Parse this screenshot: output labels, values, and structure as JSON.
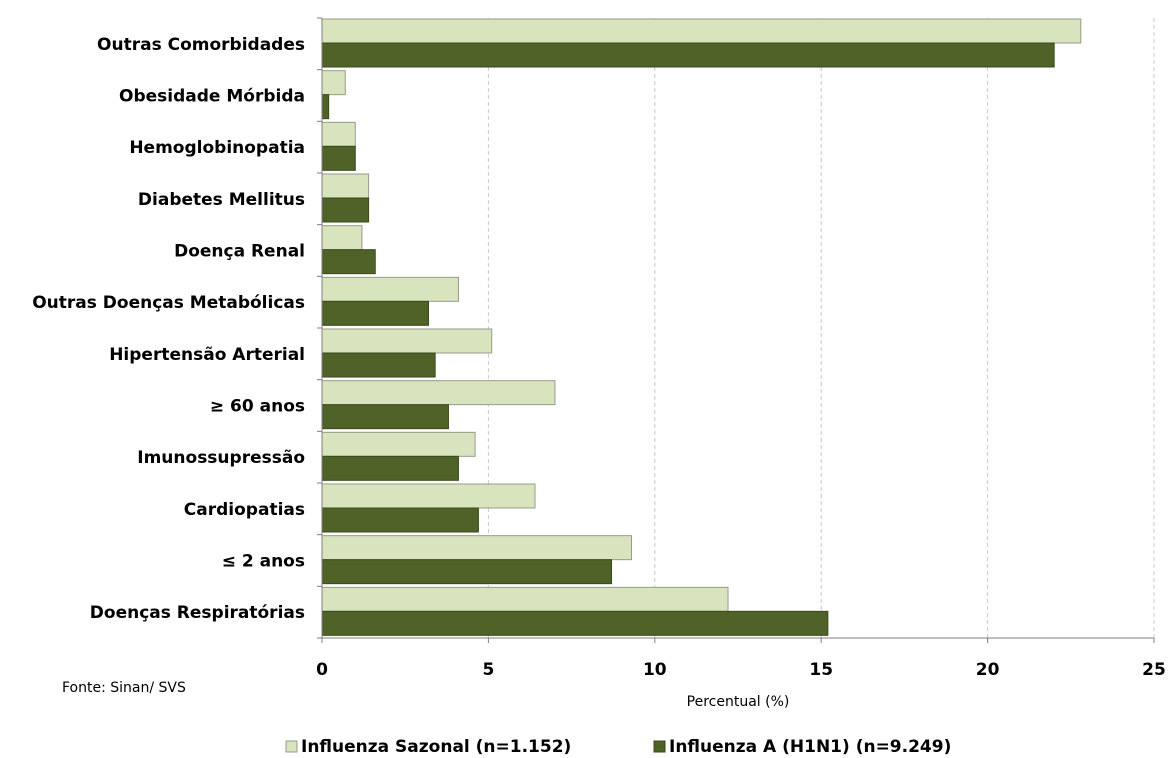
{
  "chart_data": {
    "type": "bar",
    "orientation": "horizontal",
    "categories": [
      "Outras Comorbidades",
      "Obesidade Mórbida",
      "Hemoglobinopatia",
      "Diabetes Mellitus",
      "Doença Renal",
      "Outras Doenças Metabólicas",
      "Hipertensão Arterial",
      "≥ 60 anos",
      "Imunossupressão",
      "Cardiopatias",
      "≤ 2 anos",
      "Doenças Respiratórias"
    ],
    "series": [
      {
        "name": "Influenza Sazonal (n=1.152)",
        "color": "#d7e4bd",
        "values": [
          22.8,
          0.7,
          1.0,
          1.4,
          1.2,
          4.1,
          5.1,
          7.0,
          4.6,
          6.4,
          9.3,
          12.2
        ]
      },
      {
        "name": "Influenza A (H1N1) (n=9.249)",
        "color": "#4f6228",
        "values": [
          22.0,
          0.2,
          1.0,
          1.4,
          1.6,
          3.2,
          3.4,
          3.8,
          4.1,
          4.7,
          8.7,
          15.2
        ]
      }
    ],
    "title": "",
    "xlabel": "Percentual (%)",
    "ylabel": "",
    "xlim": [
      0,
      25
    ],
    "xticks": [
      "0",
      "5",
      "10",
      "15",
      "20",
      "25"
    ],
    "grid": "vertical-dashed",
    "legend_position": "bottom"
  },
  "source_note": "Fonte: Sinan/  SVS"
}
